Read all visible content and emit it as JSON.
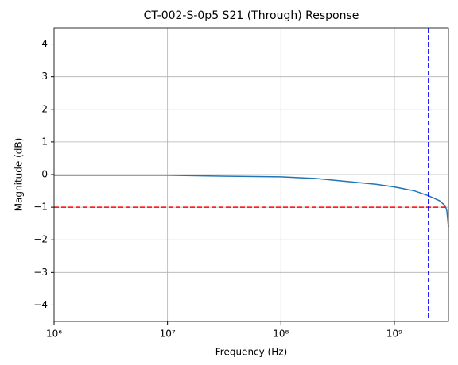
{
  "chart_data": {
    "type": "line",
    "title": "CT-002-S-0p5 S21 (Through) Response",
    "x_label": "Frequency (Hz)",
    "y_label": "Magnitude (dB)",
    "x_scale": "log",
    "grid": true,
    "x": [
      1000000,
      3000000,
      10000000,
      30000000,
      100000000,
      200000000,
      400000000,
      700000000,
      1000000000,
      1500000000,
      2000000000,
      2500000000,
      2800000000,
      2900000000,
      3000000000
    ],
    "series": [
      {
        "name": "S21",
        "color": "#1f77b4",
        "values": [
          -0.02,
          -0.02,
          -0.02,
          -0.05,
          -0.07,
          -0.12,
          -0.22,
          -0.3,
          -0.38,
          -0.5,
          -0.65,
          -0.8,
          -0.95,
          -1.1,
          -1.6
        ]
      }
    ],
    "hlines": [
      {
        "value": -1,
        "color": "#ff0000"
      }
    ],
    "vlines": [
      {
        "value": 2000000000,
        "color": "#0000ff"
      }
    ],
    "xlim": [
      1000000,
      3000000000
    ],
    "ylim": [
      -4.5,
      4.5
    ],
    "xticks": [
      {
        "value": 1000000,
        "label": "10⁶"
      },
      {
        "value": 10000000,
        "label": "10⁷"
      },
      {
        "value": 100000000,
        "label": "10⁸"
      },
      {
        "value": 1000000000,
        "label": "10⁹"
      }
    ],
    "yticks": [
      {
        "value": -4,
        "label": "−4"
      },
      {
        "value": -3,
        "label": "−3"
      },
      {
        "value": -2,
        "label": "−2"
      },
      {
        "value": -1,
        "label": "−1"
      },
      0,
      1,
      2,
      3,
      4
    ]
  }
}
